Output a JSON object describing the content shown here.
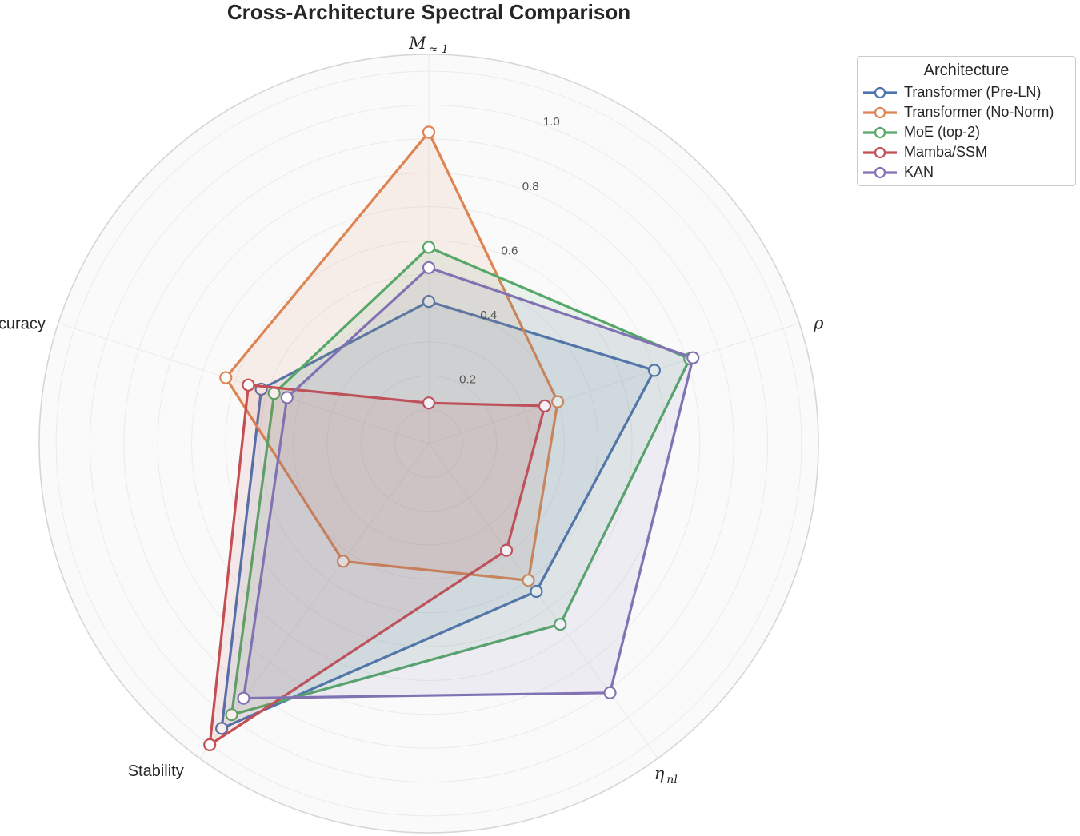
{
  "chart_data": {
    "type": "radar",
    "title": "Cross-Architecture Spectral Comparison",
    "axes": [
      {
        "label": "M",
        "sub": "≈ 1",
        "italic": true
      },
      {
        "label": "ρ",
        "sub": "",
        "italic": true
      },
      {
        "label": "η",
        "sub": "nl",
        "italic": true
      },
      {
        "label": "Stability",
        "sub": "",
        "italic": false
      },
      {
        "label": "Accuracy",
        "sub": "",
        "italic": false
      }
    ],
    "rlim": [
      0,
      1.15
    ],
    "rticks": [
      "0.2",
      "0.4",
      "0.6",
      "0.8",
      "1.0"
    ],
    "rtick_values": [
      0.2,
      0.4,
      0.6,
      0.8,
      1.0
    ],
    "legend_title": "Architecture",
    "legend_position": "top-right",
    "series": [
      {
        "name": "Transformer (Pre-LN)",
        "color": "#4c72b0",
        "values": [
          0.42,
          0.7,
          0.54,
          1.04,
          0.52
        ]
      },
      {
        "name": "Transformer (No-Norm)",
        "color": "#dd8452",
        "values": [
          0.92,
          0.4,
          0.5,
          0.43,
          0.63
        ]
      },
      {
        "name": "MoE (top-2)",
        "color": "#55a868",
        "values": [
          0.58,
          0.81,
          0.66,
          0.99,
          0.48
        ]
      },
      {
        "name": "Mamba/SSM",
        "color": "#c44e52",
        "values": [
          0.12,
          0.36,
          0.39,
          1.1,
          0.56
        ]
      },
      {
        "name": "KAN",
        "color": "#8172b3",
        "values": [
          0.52,
          0.82,
          0.91,
          0.93,
          0.44
        ]
      }
    ]
  }
}
